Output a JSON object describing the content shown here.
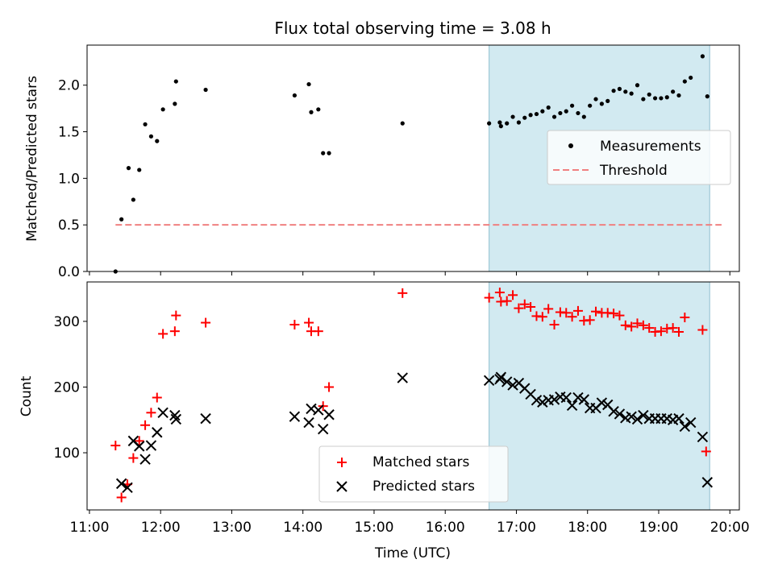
{
  "chart_data": [
    {
      "type": "scatter",
      "title": "Flux total observing time = 3.08 h",
      "xlabel": "",
      "ylabel": "Matched/Predicted stars",
      "ylim": [
        0,
        2.43
      ],
      "yticks": [
        "0.0",
        "0.5",
        "1.0",
        "1.5",
        "2.0"
      ],
      "shaded_region": {
        "from": "16:37",
        "to": "19:43",
        "color": "#add8e6"
      },
      "legend": {
        "position": "center-right",
        "entries": [
          "Measurements",
          "Threshold"
        ]
      },
      "series": [
        {
          "name": "Measurements",
          "marker": "dot",
          "color": "#000000",
          "points": [
            [
              "11:22",
              0.0
            ],
            [
              "11:27",
              0.56
            ],
            [
              "11:33",
              1.11
            ],
            [
              "11:37",
              0.77
            ],
            [
              "11:42",
              1.09
            ],
            [
              "11:47",
              1.58
            ],
            [
              "11:52",
              1.45
            ],
            [
              "11:57",
              1.4
            ],
            [
              "12:02",
              1.74
            ],
            [
              "12:12",
              1.8
            ],
            [
              "12:13",
              2.04
            ],
            [
              "12:38",
              1.95
            ],
            [
              "13:53",
              1.89
            ],
            [
              "14:05",
              2.01
            ],
            [
              "14:07",
              1.71
            ],
            [
              "14:13",
              1.74
            ],
            [
              "14:17",
              1.27
            ],
            [
              "14:22",
              1.27
            ],
            [
              "15:24",
              1.59
            ],
            [
              "16:37",
              1.59
            ],
            [
              "16:46",
              1.6
            ],
            [
              "16:47",
              1.56
            ],
            [
              "16:52",
              1.59
            ],
            [
              "16:57",
              1.66
            ],
            [
              "17:02",
              1.6
            ],
            [
              "17:07",
              1.65
            ],
            [
              "17:12",
              1.68
            ],
            [
              "17:17",
              1.69
            ],
            [
              "17:22",
              1.72
            ],
            [
              "17:27",
              1.76
            ],
            [
              "17:32",
              1.66
            ],
            [
              "17:37",
              1.7
            ],
            [
              "17:42",
              1.72
            ],
            [
              "17:47",
              1.78
            ],
            [
              "17:52",
              1.7
            ],
            [
              "17:57",
              1.66
            ],
            [
              "18:02",
              1.78
            ],
            [
              "18:07",
              1.85
            ],
            [
              "18:12",
              1.8
            ],
            [
              "18:17",
              1.83
            ],
            [
              "18:22",
              1.94
            ],
            [
              "18:27",
              1.96
            ],
            [
              "18:32",
              1.93
            ],
            [
              "18:37",
              1.91
            ],
            [
              "18:42",
              2.0
            ],
            [
              "18:47",
              1.85
            ],
            [
              "18:52",
              1.9
            ],
            [
              "18:57",
              1.86
            ],
            [
              "19:02",
              1.86
            ],
            [
              "19:07",
              1.87
            ],
            [
              "19:12",
              1.93
            ],
            [
              "19:17",
              1.89
            ],
            [
              "19:22",
              2.04
            ],
            [
              "19:27",
              2.08
            ],
            [
              "19:37",
              2.31
            ],
            [
              "19:41",
              1.88
            ]
          ]
        },
        {
          "name": "Threshold",
          "marker": "dashed-line",
          "color": "#f08080",
          "x": [
            "11:22",
            "19:53"
          ],
          "values": [
            0.5,
            0.5
          ]
        }
      ]
    },
    {
      "type": "scatter",
      "title": "",
      "xlabel": "Time (UTC)",
      "ylabel": "Count",
      "ylim": [
        13,
        360
      ],
      "yticks": [
        "100",
        "200",
        "300"
      ],
      "xlim": [
        "10:58",
        "20:08"
      ],
      "xticks": [
        "11:00",
        "12:00",
        "13:00",
        "14:00",
        "15:00",
        "16:00",
        "17:00",
        "18:00",
        "19:00",
        "20:00"
      ],
      "shaded_region": {
        "from": "16:37",
        "to": "19:43",
        "color": "#add8e6"
      },
      "legend": {
        "position": "bottom-center",
        "entries": [
          "Matched stars",
          "Predicted stars"
        ]
      },
      "series": [
        {
          "name": "Matched stars",
          "marker": "plus",
          "color": "#ff0000",
          "points": [
            [
              "11:22",
              111
            ],
            [
              "11:27",
              32
            ],
            [
              "11:32",
              52
            ],
            [
              "11:37",
              92
            ],
            [
              "11:42",
              118
            ],
            [
              "11:47",
              142
            ],
            [
              "11:52",
              161
            ],
            [
              "11:57",
              184
            ],
            [
              "12:02",
              281
            ],
            [
              "12:12",
              285
            ],
            [
              "12:13",
              309
            ],
            [
              "12:38",
              298
            ],
            [
              "13:53",
              295
            ],
            [
              "14:05",
              298
            ],
            [
              "14:07",
              285
            ],
            [
              "14:13",
              285
            ],
            [
              "14:17",
              171
            ],
            [
              "14:22",
              200
            ],
            [
              "15:24",
              343
            ],
            [
              "16:37",
              336
            ],
            [
              "16:46",
              344
            ],
            [
              "16:47",
              330
            ],
            [
              "16:52",
              331
            ],
            [
              "16:57",
              340
            ],
            [
              "17:02",
              320
            ],
            [
              "17:07",
              326
            ],
            [
              "17:12",
              322
            ],
            [
              "17:17",
              308
            ],
            [
              "17:22",
              307
            ],
            [
              "17:27",
              319
            ],
            [
              "17:32",
              295
            ],
            [
              "17:37",
              314
            ],
            [
              "17:42",
              313
            ],
            [
              "17:47",
              307
            ],
            [
              "17:52",
              316
            ],
            [
              "17:57",
              301
            ],
            [
              "18:02",
              302
            ],
            [
              "18:07",
              315
            ],
            [
              "18:12",
              313
            ],
            [
              "18:17",
              313
            ],
            [
              "18:22",
              312
            ],
            [
              "18:27",
              309
            ],
            [
              "18:32",
              294
            ],
            [
              "18:37",
              292
            ],
            [
              "18:42",
              297
            ],
            [
              "18:47",
              294
            ],
            [
              "18:52",
              290
            ],
            [
              "18:57",
              284
            ],
            [
              "19:02",
              285
            ],
            [
              "19:07",
              289
            ],
            [
              "19:12",
              290
            ],
            [
              "19:17",
              284
            ],
            [
              "19:22",
              306
            ],
            [
              "19:37",
              287
            ],
            [
              "19:40",
              102
            ]
          ]
        },
        {
          "name": "Predicted stars",
          "marker": "x",
          "color": "#000000",
          "points": [
            [
              "11:27",
              53
            ],
            [
              "11:32",
              47
            ],
            [
              "11:37",
              118
            ],
            [
              "11:42",
              110
            ],
            [
              "11:47",
              90
            ],
            [
              "11:52",
              111
            ],
            [
              "11:57",
              131
            ],
            [
              "12:02",
              161
            ],
            [
              "12:12",
              157
            ],
            [
              "12:13",
              151
            ],
            [
              "12:38",
              152
            ],
            [
              "13:53",
              155
            ],
            [
              "14:05",
              146
            ],
            [
              "14:07",
              167
            ],
            [
              "14:13",
              165
            ],
            [
              "14:17",
              136
            ],
            [
              "14:22",
              158
            ],
            [
              "15:24",
              214
            ],
            [
              "16:37",
              210
            ],
            [
              "16:46",
              212
            ],
            [
              "16:47",
              215
            ],
            [
              "16:52",
              208
            ],
            [
              "16:57",
              203
            ],
            [
              "17:02",
              206
            ],
            [
              "17:07",
              198
            ],
            [
              "17:12",
              189
            ],
            [
              "17:17",
              180
            ],
            [
              "17:22",
              177
            ],
            [
              "17:27",
              180
            ],
            [
              "17:32",
              181
            ],
            [
              "17:37",
              185
            ],
            [
              "17:42",
              184
            ],
            [
              "17:47",
              172
            ],
            [
              "17:52",
              184
            ],
            [
              "17:57",
              181
            ],
            [
              "18:02",
              168
            ],
            [
              "18:07",
              168
            ],
            [
              "18:12",
              176
            ],
            [
              "18:17",
              173
            ],
            [
              "18:22",
              163
            ],
            [
              "18:27",
              159
            ],
            [
              "18:32",
              153
            ],
            [
              "18:37",
              155
            ],
            [
              "18:42",
              151
            ],
            [
              "18:47",
              157
            ],
            [
              "18:52",
              152
            ],
            [
              "18:57",
              152
            ],
            [
              "19:02",
              152
            ],
            [
              "19:07",
              152
            ],
            [
              "19:12",
              150
            ],
            [
              "19:17",
              152
            ],
            [
              "19:22",
              140
            ],
            [
              "19:27",
              146
            ],
            [
              "19:37",
              124
            ],
            [
              "19:41",
              55
            ]
          ]
        }
      ]
    }
  ]
}
